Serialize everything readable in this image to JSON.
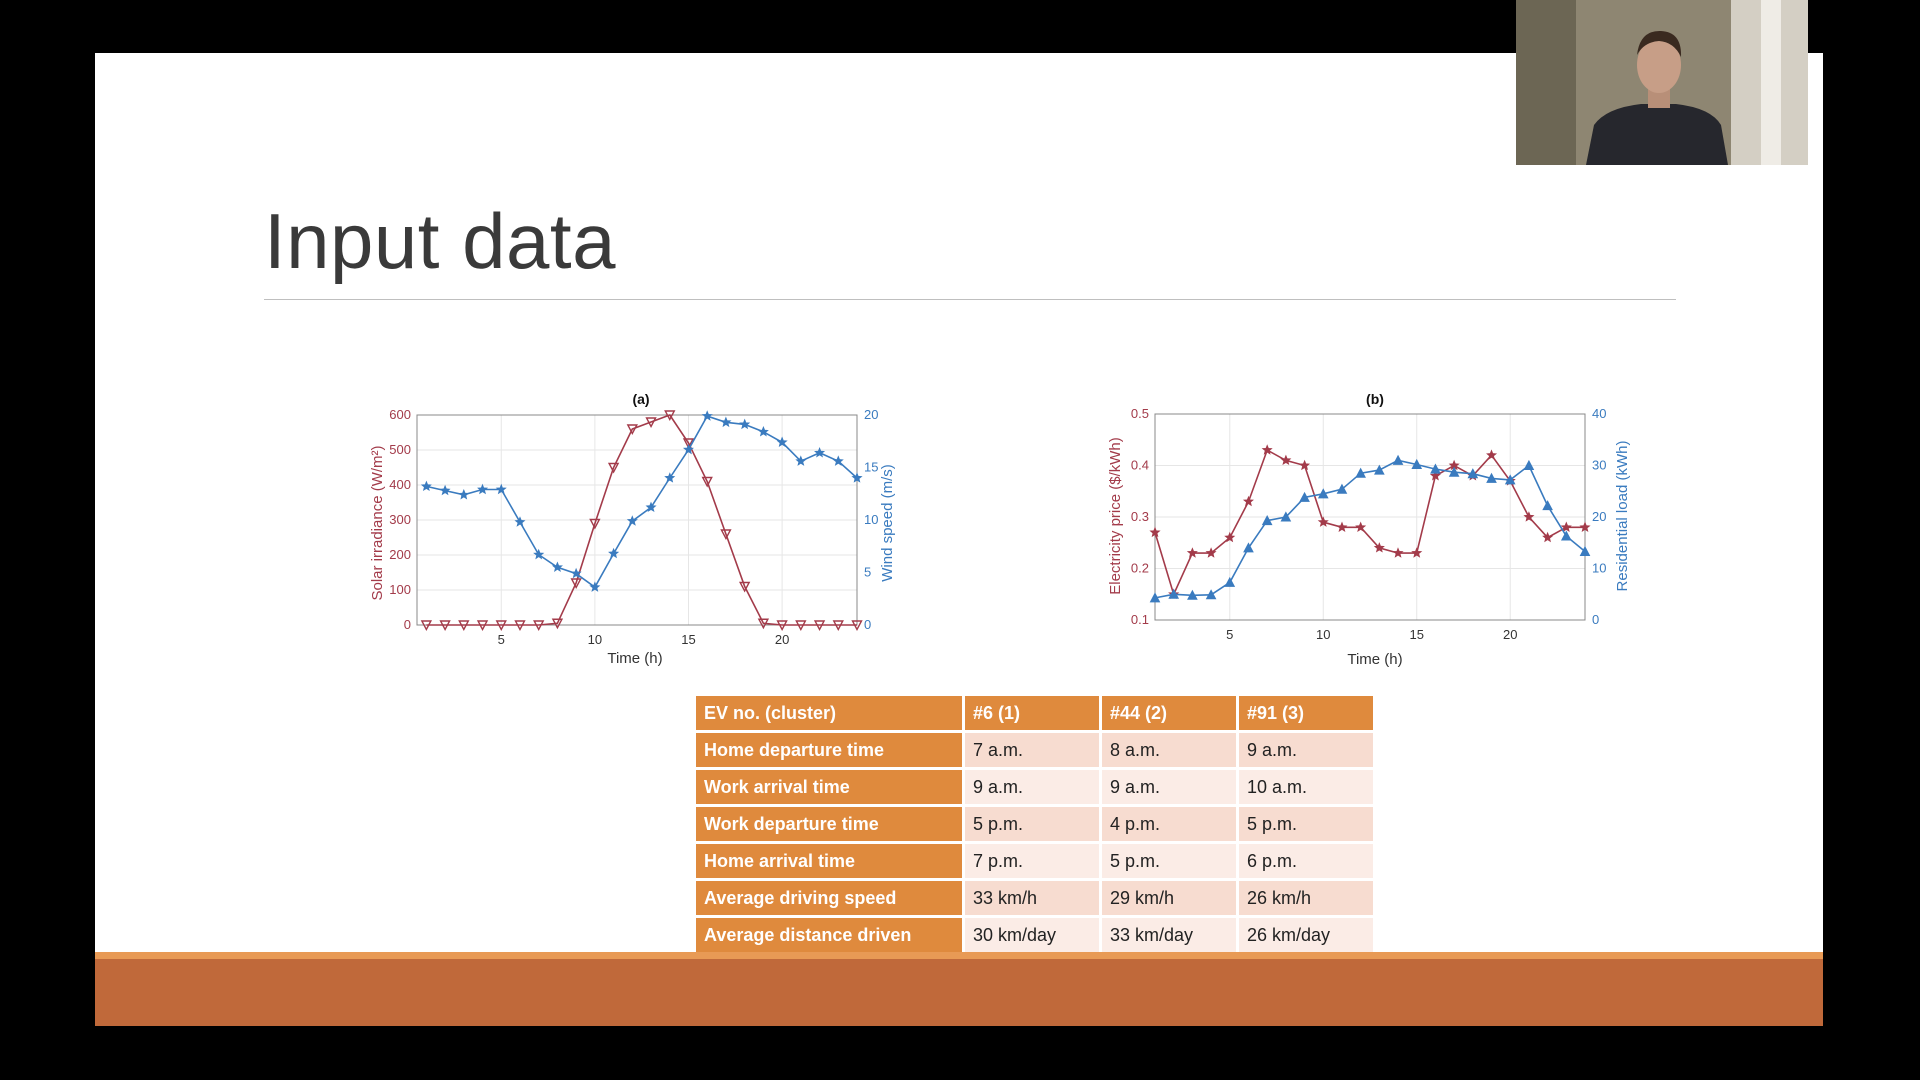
{
  "slide": {
    "title": "Input data"
  },
  "charts_text": {
    "a": {
      "title": "(a)",
      "xlabel": "Time (h)",
      "ylabel_left": "Solar irradiance (W/m²)",
      "ylabel_right": "Wind speed (m/s)"
    },
    "b": {
      "title": "(b)",
      "xlabel": "Time (h)",
      "ylabel_left": "Electricity price ($/kWh)",
      "ylabel_right": "Residential load (kWh)"
    }
  },
  "colors": {
    "series_red": "#a33b4a",
    "series_blue": "#3a7bbf",
    "table_header": "#df8a3d",
    "footer": "#c0693a"
  },
  "chart_data": [
    {
      "type": "line",
      "title": "(a)",
      "xlabel": "Time (h)",
      "ylabel": "Solar irradiance (W/m²)",
      "y2label": "Wind speed (m/s)",
      "xlim": [
        0.5,
        24
      ],
      "ylim": [
        0,
        600
      ],
      "y2lim": [
        0,
        20
      ],
      "x_ticks": [
        5,
        10,
        15,
        20
      ],
      "y_ticks": [
        0,
        100,
        200,
        300,
        400,
        500,
        600
      ],
      "y2_ticks": [
        0,
        5,
        10,
        15,
        20
      ],
      "grid": true,
      "x": [
        1,
        2,
        3,
        4,
        5,
        6,
        7,
        8,
        9,
        10,
        11,
        12,
        13,
        14,
        15,
        16,
        17,
        18,
        19,
        20,
        21,
        22,
        23,
        24
      ],
      "series": [
        {
          "marker": "triangle-down",
          "axis": "left",
          "values": [
            0,
            0,
            0,
            0,
            0,
            0,
            0,
            5,
            120,
            290,
            450,
            560,
            580,
            600,
            520,
            410,
            260,
            110,
            5,
            0,
            0,
            0,
            0,
            0
          ]
        },
        {
          "marker": "star",
          "axis": "right",
          "values": [
            13.2,
            12.8,
            12.4,
            12.9,
            12.9,
            9.8,
            6.7,
            5.5,
            4.9,
            3.6,
            6.8,
            9.9,
            11.2,
            14.0,
            16.7,
            19.9,
            19.3,
            19.1,
            18.4,
            17.4,
            15.6,
            16.4,
            15.6,
            14.0
          ]
        }
      ]
    },
    {
      "type": "line",
      "title": "(b)",
      "xlabel": "Time (h)",
      "ylabel": "Electricity price ($/kWh)",
      "y2label": "Residential load (kWh)",
      "xlim": [
        1,
        24
      ],
      "ylim": [
        0.1,
        0.5
      ],
      "y2lim": [
        0,
        40
      ],
      "x_ticks": [
        5,
        10,
        15,
        20
      ],
      "y_ticks": [
        0.1,
        0.2,
        0.3,
        0.4,
        0.5
      ],
      "y2_ticks": [
        0,
        10,
        20,
        30,
        40
      ],
      "grid": true,
      "x": [
        1,
        2,
        3,
        4,
        5,
        6,
        7,
        8,
        9,
        10,
        11,
        12,
        13,
        14,
        15,
        16,
        17,
        18,
        19,
        20,
        21,
        22,
        23,
        24
      ],
      "series": [
        {
          "marker": "star",
          "axis": "left",
          "values": [
            0.27,
            0.15,
            0.23,
            0.23,
            0.26,
            0.33,
            0.43,
            0.41,
            0.4,
            0.29,
            0.28,
            0.28,
            0.24,
            0.23,
            0.23,
            0.38,
            0.4,
            0.38,
            0.42,
            0.37,
            0.3,
            0.26,
            0.28,
            0.28
          ]
        },
        {
          "marker": "triangle-up",
          "axis": "right",
          "values": [
            4.3,
            5.0,
            4.8,
            4.9,
            7.3,
            14.0,
            19.3,
            20.0,
            23.8,
            24.5,
            25.4,
            28.5,
            29.1,
            31.0,
            30.2,
            29.3,
            28.7,
            28.4,
            27.5,
            27.2,
            30.0,
            22.2,
            16.3,
            13.3
          ]
        }
      ]
    }
  ],
  "table": {
    "header": [
      "EV no. (cluster)",
      "#6 (1)",
      "#44 (2)",
      "#91 (3)"
    ],
    "rows": [
      [
        "Home departure time",
        "7 a.m.",
        "8 a.m.",
        "9 a.m."
      ],
      [
        "Work arrival time",
        "9 a.m.",
        "9 a.m.",
        "10 a.m."
      ],
      [
        "Work departure time",
        "5 p.m.",
        "4 p.m.",
        "5 p.m."
      ],
      [
        "Home arrival time",
        "7 p.m.",
        "5 p.m.",
        "6 p.m."
      ],
      [
        "Average driving speed",
        "33 km/h",
        "29 km/h",
        "26 km/h"
      ],
      [
        "Average distance driven",
        "30 km/day",
        "33 km/day",
        "26 km/day"
      ]
    ]
  }
}
